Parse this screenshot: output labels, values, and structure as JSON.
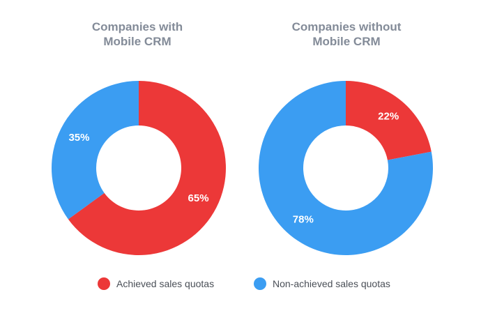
{
  "colors": {
    "achieved": "#ec3838",
    "non_achieved": "#3b9df2"
  },
  "legend": {
    "achieved_label": "Achieved sales quotas",
    "non_achieved_label": "Non-achieved sales quotas"
  },
  "chart_data": [
    {
      "type": "pie",
      "title_line1": "Companies with",
      "title_line2": "Mobile CRM",
      "slices": [
        {
          "name": "Achieved sales quotas",
          "value": 65,
          "label": "65%"
        },
        {
          "name": "Non-achieved sales quotas",
          "value": 35,
          "label": "35%"
        }
      ]
    },
    {
      "type": "pie",
      "title_line1": "Companies without",
      "title_line2": "Mobile CRM",
      "slices": [
        {
          "name": "Achieved sales quotas",
          "value": 22,
          "label": "22%"
        },
        {
          "name": "Non-achieved sales quotas",
          "value": 78,
          "label": "78%"
        }
      ]
    }
  ]
}
